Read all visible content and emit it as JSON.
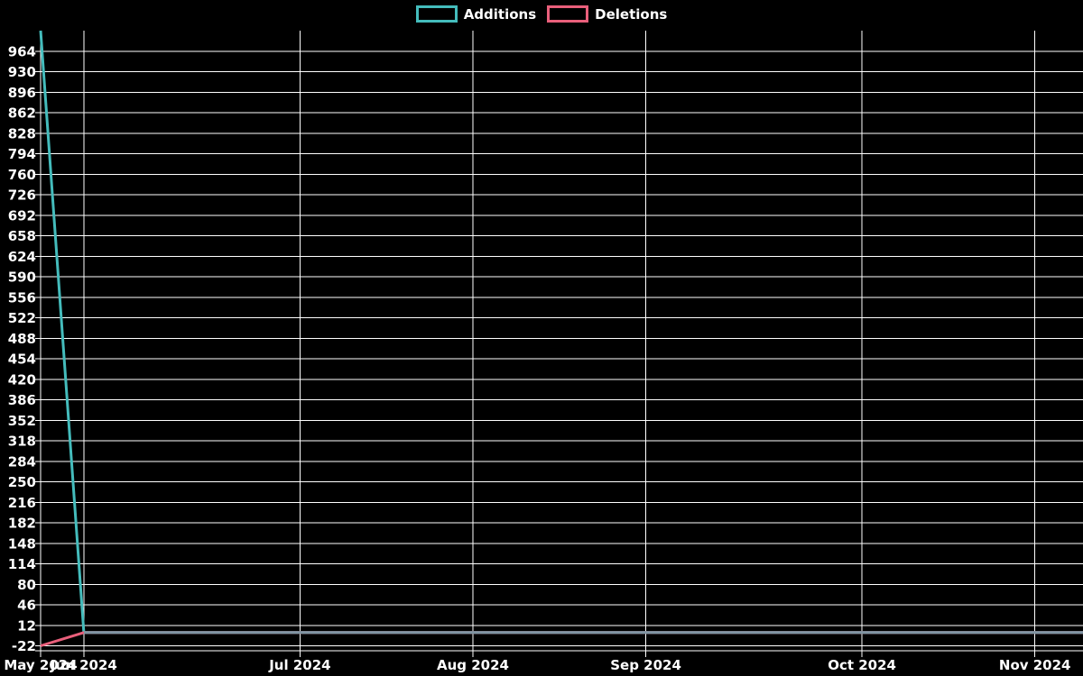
{
  "colors": {
    "background": "#000000",
    "grid": "#ffffff",
    "text": "#ffffff",
    "additions": "#44bcbc",
    "deletions": "#e95f7b",
    "zero_overlap": "#7f95a3"
  },
  "legend": {
    "items": [
      {
        "label": "Additions",
        "color": "#44bcbc"
      },
      {
        "label": "Deletions",
        "color": "#e95f7b"
      }
    ]
  },
  "chart_data": {
    "type": "line",
    "title": "",
    "legend_position": "top-center",
    "grid": true,
    "slots": 24,
    "x_axis": {
      "ticks": [
        {
          "label": "May 2024",
          "slot": 0
        },
        {
          "label": "Jun 2024",
          "slot": 1
        },
        {
          "label": "Jul 2024",
          "slot": 6
        },
        {
          "label": "Aug 2024",
          "slot": 10
        },
        {
          "label": "Sep 2024",
          "slot": 14
        },
        {
          "label": "Oct 2024",
          "slot": 19
        },
        {
          "label": "Nov 2024",
          "slot": 23
        }
      ]
    },
    "y_axis": {
      "min": -22,
      "max": 998,
      "tick_step": 34,
      "ticks": [
        964,
        930,
        896,
        862,
        828,
        794,
        760,
        726,
        692,
        658,
        624,
        590,
        556,
        522,
        488,
        454,
        420,
        386,
        352,
        318,
        284,
        250,
        216,
        182,
        148,
        114,
        80,
        46,
        12,
        -22
      ]
    },
    "series": [
      {
        "name": "Additions",
        "color": "#44bcbc",
        "points": [
          [
            0,
            998
          ],
          [
            1,
            0
          ],
          [
            24,
            0
          ]
        ]
      },
      {
        "name": "Deletions",
        "color": "#e95f7b",
        "points": [
          [
            0,
            -22
          ],
          [
            1,
            0
          ],
          [
            24,
            0
          ]
        ]
      }
    ],
    "overlap_zero_line": {
      "color": "#7f95a3",
      "from_slot": 1,
      "value": 0
    }
  }
}
